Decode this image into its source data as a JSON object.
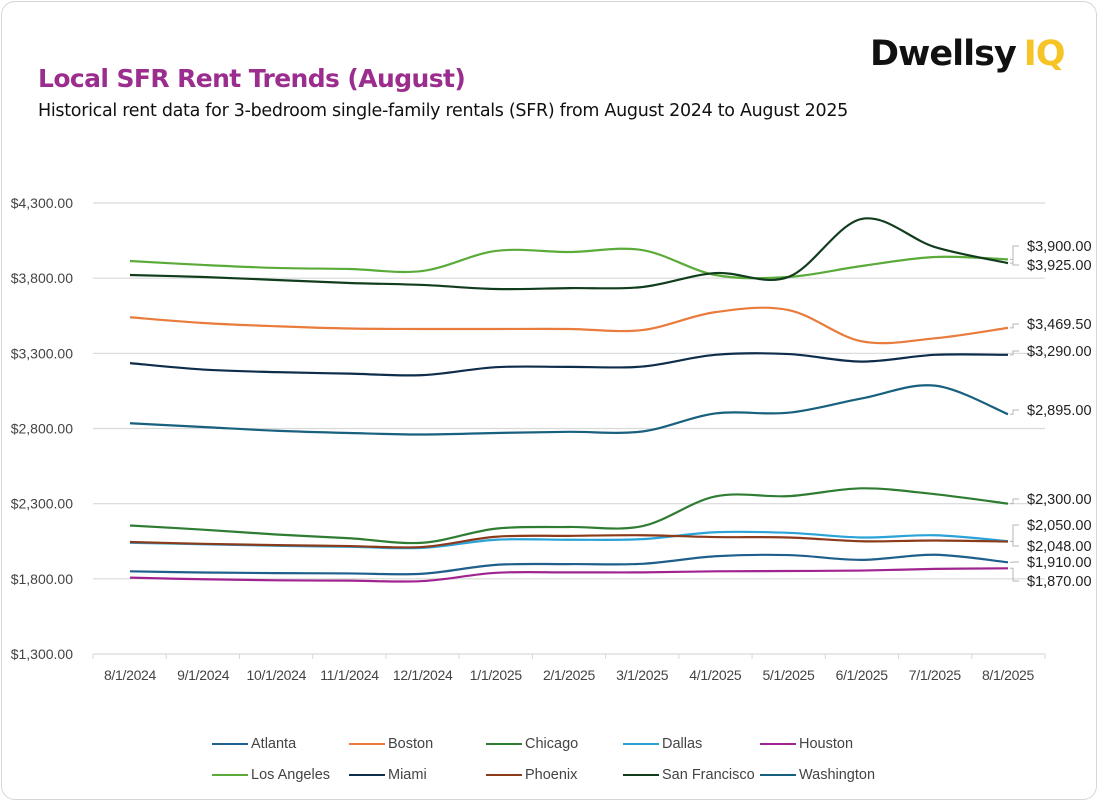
{
  "header": {
    "title": "Local SFR Rent Trends (August)",
    "subtitle": "Historical rent data for 3-bedroom single-family rentals (SFR) from August 2024 to August 2025",
    "logo_text": "Dwellsy",
    "logo_suffix": "IQ",
    "title_color": "#9b2d8e",
    "logo_accent_color": "#f6c426"
  },
  "chart_data": {
    "type": "line",
    "title": "Local SFR Rent Trends (August)",
    "subtitle": "Historical rent data for 3-bedroom single-family rentals (SFR) from August 2024 to August 2025",
    "xlabel": "",
    "ylabel": "",
    "ylim": [
      1300,
      4300
    ],
    "yticks": [
      1300,
      1800,
      2300,
      2800,
      3300,
      3800,
      4300
    ],
    "ytick_labels": [
      "$1,300.00",
      "$1,800.00",
      "$2,300.00",
      "$2,800.00",
      "$3,300.00",
      "$3,800.00",
      "$4,300.00"
    ],
    "grid": true,
    "smooth": true,
    "legend_position": "bottom",
    "categories": [
      "8/1/2024",
      "9/1/2024",
      "10/1/2024",
      "11/1/2024",
      "12/1/2024",
      "1/1/2025",
      "2/1/2025",
      "3/1/2025",
      "4/1/2025",
      "5/1/2025",
      "6/1/2025",
      "7/1/2025",
      "8/1/2025"
    ],
    "series": [
      {
        "name": "Atlanta",
        "color": "#1f5f8b",
        "values": [
          1850,
          1842,
          1838,
          1836,
          1834,
          1893,
          1898,
          1900,
          1950,
          1958,
          1926,
          1960,
          1910
        ]
      },
      {
        "name": "Boston",
        "color": "#e97b3c",
        "values": [
          3540,
          3502,
          3480,
          3465,
          3462,
          3462,
          3462,
          3455,
          3574,
          3588,
          3380,
          3400,
          3469.5
        ]
      },
      {
        "name": "Chicago",
        "color": "#2e7d32",
        "values": [
          2155,
          2127,
          2095,
          2070,
          2040,
          2134,
          2145,
          2150,
          2348,
          2350,
          2402,
          2363,
          2300
        ]
      },
      {
        "name": "Dallas",
        "color": "#2aa3d8",
        "values": [
          2040,
          2030,
          2020,
          2013,
          2006,
          2060,
          2060,
          2064,
          2110,
          2106,
          2075,
          2090,
          2050
        ]
      },
      {
        "name": "Houston",
        "color": "#a0248f",
        "values": [
          1808,
          1797,
          1790,
          1788,
          1785,
          1840,
          1843,
          1843,
          1850,
          1852,
          1855,
          1866,
          1870
        ]
      },
      {
        "name": "Los Angeles",
        "color": "#5aab3a",
        "values": [
          3914,
          3888,
          3868,
          3861,
          3848,
          3981,
          3974,
          3987,
          3821,
          3808,
          3881,
          3941,
          3925
        ]
      },
      {
        "name": "Miami",
        "color": "#0d2d4a",
        "values": [
          3235,
          3192,
          3175,
          3165,
          3155,
          3208,
          3210,
          3212,
          3290,
          3295,
          3245,
          3290,
          3290
        ]
      },
      {
        "name": "Phoenix",
        "color": "#8b3a1a",
        "values": [
          2045,
          2033,
          2024,
          2018,
          2012,
          2080,
          2086,
          2090,
          2078,
          2075,
          2050,
          2055,
          2048
        ]
      },
      {
        "name": "San Francisco",
        "color": "#123d1d",
        "values": [
          3821,
          3808,
          3788,
          3768,
          3755,
          3728,
          3734,
          3741,
          3834,
          3808,
          4194,
          4007,
          3900
        ]
      },
      {
        "name": "Washington",
        "color": "#17607e",
        "values": [
          2835,
          2810,
          2785,
          2770,
          2760,
          2770,
          2778,
          2780,
          2900,
          2905,
          3000,
          3085,
          2895
        ]
      }
    ],
    "end_labels": [
      {
        "series": "San Francisco",
        "label": "$3,900.00"
      },
      {
        "series": "Los Angeles",
        "label": "$3,925.00"
      },
      {
        "series": "Boston",
        "label": "$3,469.50"
      },
      {
        "series": "Miami",
        "label": "$3,290.00"
      },
      {
        "series": "Washington",
        "label": "$2,895.00"
      },
      {
        "series": "Chicago",
        "label": "$2,300.00"
      },
      {
        "series": "Dallas",
        "label": "$2,050.00"
      },
      {
        "series": "Phoenix",
        "label": "$2,048.00"
      },
      {
        "series": "Atlanta",
        "label": "$1,910.00"
      },
      {
        "series": "Houston",
        "label": "$1,870.00"
      }
    ]
  }
}
